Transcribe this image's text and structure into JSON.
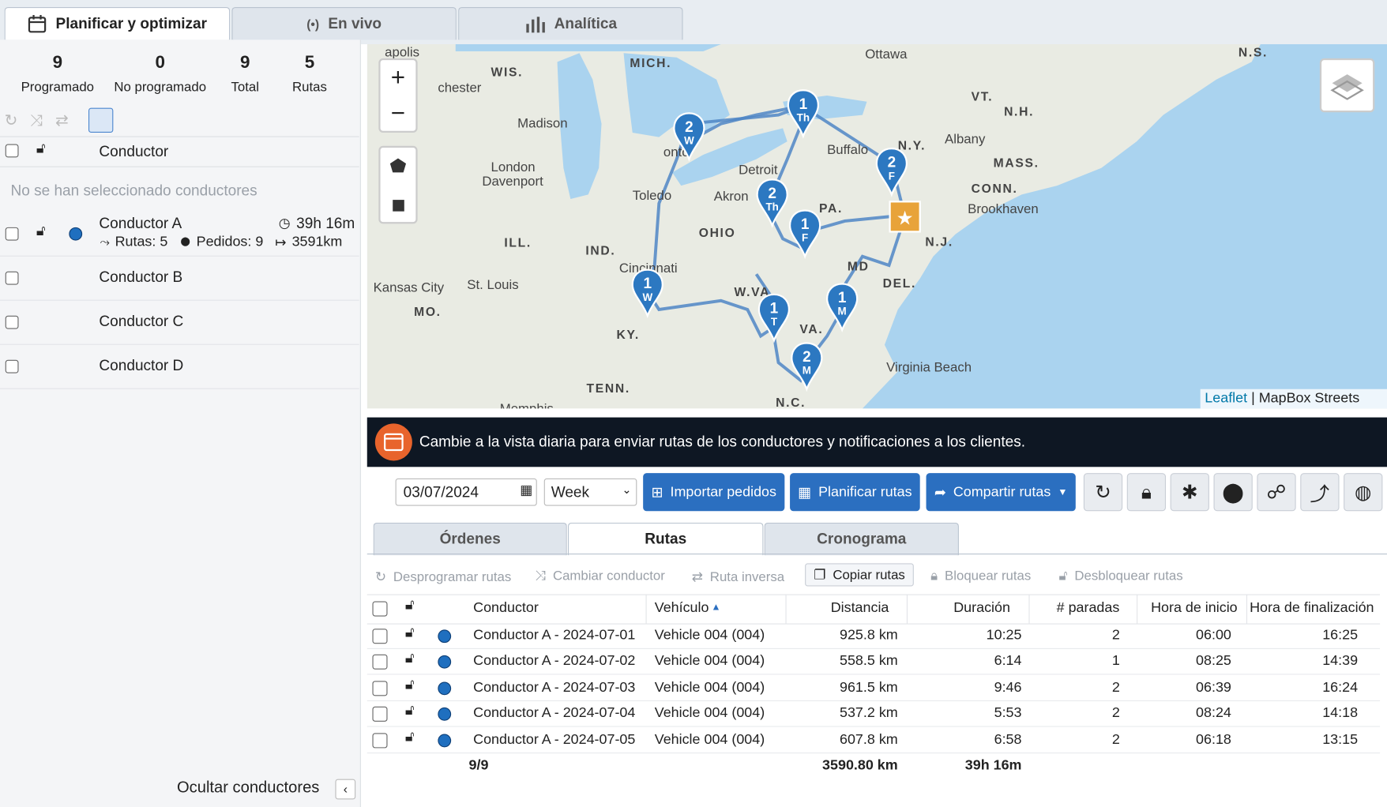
{
  "tabs": [
    "Planificar y optimizar",
    "En vivo",
    "Analítica"
  ],
  "stats": [
    {
      "value": 9,
      "label": "Programado"
    },
    {
      "value": 0,
      "label": "No programado"
    },
    {
      "value": 9,
      "label": "Total"
    },
    {
      "value": 5,
      "label": "Rutas"
    }
  ],
  "drivers_table": {
    "header": "Conductor",
    "empty_message": "No se han seleccionado conductores",
    "drivers": [
      {
        "name": "Conductor A",
        "time": "39h 16m",
        "routes": "Rutas: 5",
        "orders": "Pedidos: 9",
        "distance": "3591km"
      },
      {
        "name": "Conductor B"
      },
      {
        "name": "Conductor C"
      },
      {
        "name": "Conductor D"
      }
    ]
  },
  "hide_drivers": "Ocultar conductores",
  "map": {
    "labels": [
      "apolis",
      "WIS.",
      "MICH.",
      "chester",
      "Madison",
      "London",
      "Detroit",
      "onto",
      "Buffalo",
      "Ottawa",
      "N.S.",
      "VT.",
      "N.H.",
      "Albany",
      "N.Y.",
      "MASS.",
      "CONN.",
      "Brookhaven",
      "Davenport",
      "Toledo",
      "Akron",
      "PA.",
      "N.J.",
      "OHIO",
      "ILL.",
      "IND.",
      "Cincinnati",
      "MD",
      "DEL.",
      "Kansas City",
      "St. Louis",
      "W.VA.",
      "MO.",
      "VA.",
      "KY.",
      "Virginia Beach",
      "TENN.",
      "N.C.",
      "Memphis"
    ],
    "pins": [
      {
        "number": "1",
        "day": "Th"
      },
      {
        "number": "2",
        "day": "W"
      },
      {
        "number": "2",
        "day": "F"
      },
      {
        "number": "2",
        "day": "Th"
      },
      {
        "number": "1",
        "day": "F"
      },
      {
        "number": "1",
        "day": "W"
      },
      {
        "number": "1",
        "day": "T"
      },
      {
        "number": "1",
        "day": "M"
      },
      {
        "number": "2",
        "day": "M"
      }
    ],
    "attribution": {
      "link": "Leaflet",
      "source": "MapBox Streets"
    }
  },
  "banner": "Cambie a la vista diaria para enviar rutas de los conductores y notificaciones a los clientes.",
  "toolbar": {
    "date": "03/07/2024",
    "view": "Week",
    "buttons": [
      "Importar pedidos",
      "Planificar rutas",
      "Compartir rutas"
    ]
  },
  "subtabs": [
    "Órdenes",
    "Rutas",
    "Cronograma"
  ],
  "actions": [
    "Desprogramar rutas",
    "Cambiar conductor",
    "Ruta inversa",
    "Copiar rutas",
    "Bloquear rutas",
    "Desbloquear rutas"
  ],
  "routes_table": {
    "columns": [
      "Conductor",
      "Vehículo",
      "Distancia",
      "Duración",
      "# paradas",
      "Hora de inicio",
      "Hora de finalización"
    ],
    "rows": [
      [
        "Conductor A - 2024-07-01",
        "Vehicle 004 (004)",
        "925.8 km",
        "10:25",
        2,
        "06:00",
        "16:25"
      ],
      [
        "Conductor A - 2024-07-02",
        "Vehicle 004 (004)",
        "558.5 km",
        "6:14",
        1,
        "08:25",
        "14:39"
      ],
      [
        "Conductor A - 2024-07-03",
        "Vehicle 004 (004)",
        "961.5 km",
        "9:46",
        2,
        "06:39",
        "16:24"
      ],
      [
        "Conductor A - 2024-07-04",
        "Vehicle 004 (004)",
        "537.2 km",
        "5:53",
        2,
        "08:24",
        "14:18"
      ],
      [
        "Conductor A - 2024-07-05",
        "Vehicle 004 (004)",
        "607.8 km",
        "6:58",
        2,
        "06:18",
        "13:15"
      ]
    ],
    "totals": {
      "count": "9/9",
      "distance": "3590.80 km",
      "duration": "39h 16m"
    }
  }
}
